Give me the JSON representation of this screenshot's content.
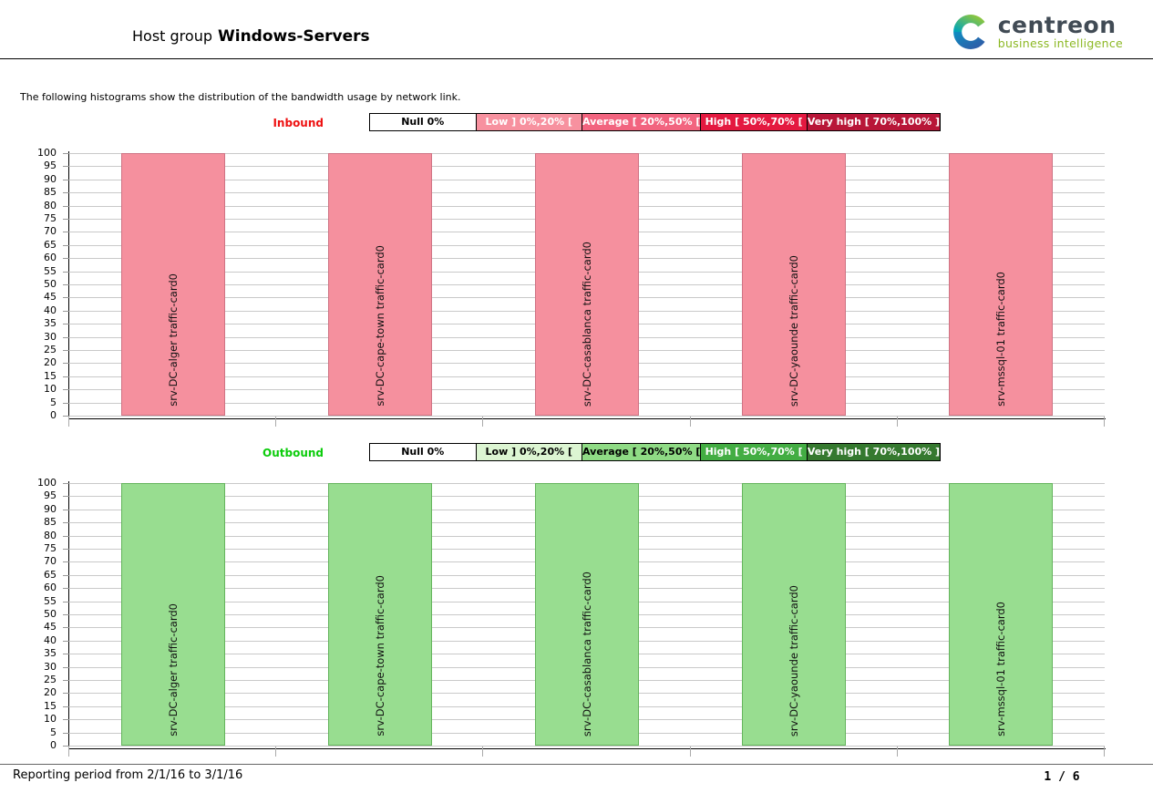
{
  "page": {
    "title_prefix": "Host group",
    "host_group": "Windows-Servers",
    "intro": "The following histograms show the distribution of the bandwidth usage by network link.",
    "logo": {
      "brand": "centreon",
      "tagline": "business intelligence",
      "brand_color": "#414b55",
      "tagline_color": "#8cb823"
    },
    "footer": {
      "reporting_period": "Reporting period from 2/1/16 to 3/1/16",
      "page_number": "1 / 6"
    }
  },
  "chart_data": [
    {
      "type": "bar",
      "title": "Inbound",
      "direction_color": "#ee1111",
      "legend_position": "top",
      "legend": [
        {
          "label": "Null 0%",
          "bg": "#ffffff",
          "fg": "#000000"
        },
        {
          "label": "Low ] 0%,20% [",
          "bg": "#f7919f",
          "fg": "#ffffff"
        },
        {
          "label": "Average [ 20%,50% [",
          "bg": "#f2647f",
          "fg": "#ffffff"
        },
        {
          "label": "High [ 50%,70% [",
          "bg": "#e41940",
          "fg": "#ffffff"
        },
        {
          "label": "Very high [ 70%,100% ]",
          "bg": "#b81638",
          "fg": "#ffffff"
        }
      ],
      "categories": [
        "srv-DC-alger traffic-card0",
        "srv-DC-cape-town traffic-card0",
        "srv-DC-casablanca traffic-card0",
        "srv-DC-yaounde traffic-card0",
        "srv-mssql-01 traffic-card0"
      ],
      "values": [
        100,
        100,
        100,
        100,
        100
      ],
      "xlabel": "",
      "ylabel": "",
      "ylim": [
        0,
        100
      ],
      "yticks": [
        0,
        5,
        10,
        15,
        20,
        25,
        30,
        35,
        40,
        45,
        50,
        55,
        60,
        65,
        70,
        75,
        80,
        85,
        90,
        95,
        100
      ],
      "grid": true,
      "bar_color": "#f5909e",
      "bar_border_color": "#cf7384"
    },
    {
      "type": "bar",
      "title": "Outbound",
      "direction_color": "#0ccc0c",
      "legend_position": "top",
      "legend": [
        {
          "label": "Null 0%",
          "bg": "#ffffff",
          "fg": "#000000"
        },
        {
          "label": "Low ] 0%,20% [",
          "bg": "#dcf5d2",
          "fg": "#000000"
        },
        {
          "label": "Average [ 20%,50% [",
          "bg": "#8fdb85",
          "fg": "#000000"
        },
        {
          "label": "High [ 50%,70% [",
          "bg": "#43ad43",
          "fg": "#ffffff"
        },
        {
          "label": "Very high [ 70%,100% ]",
          "bg": "#35792f",
          "fg": "#ffffff"
        }
      ],
      "categories": [
        "srv-DC-alger traffic-card0",
        "srv-DC-cape-town traffic-card0",
        "srv-DC-casablanca traffic-card0",
        "srv-DC-yaounde traffic-card0",
        "srv-mssql-01 traffic-card0"
      ],
      "values": [
        100,
        100,
        100,
        100,
        100
      ],
      "xlabel": "",
      "ylabel": "",
      "ylim": [
        0,
        100
      ],
      "yticks": [
        0,
        5,
        10,
        15,
        20,
        25,
        30,
        35,
        40,
        45,
        50,
        55,
        60,
        65,
        70,
        75,
        80,
        85,
        90,
        95,
        100
      ],
      "grid": true,
      "bar_color": "#98dd90",
      "bar_border_color": "#64b45c"
    }
  ]
}
